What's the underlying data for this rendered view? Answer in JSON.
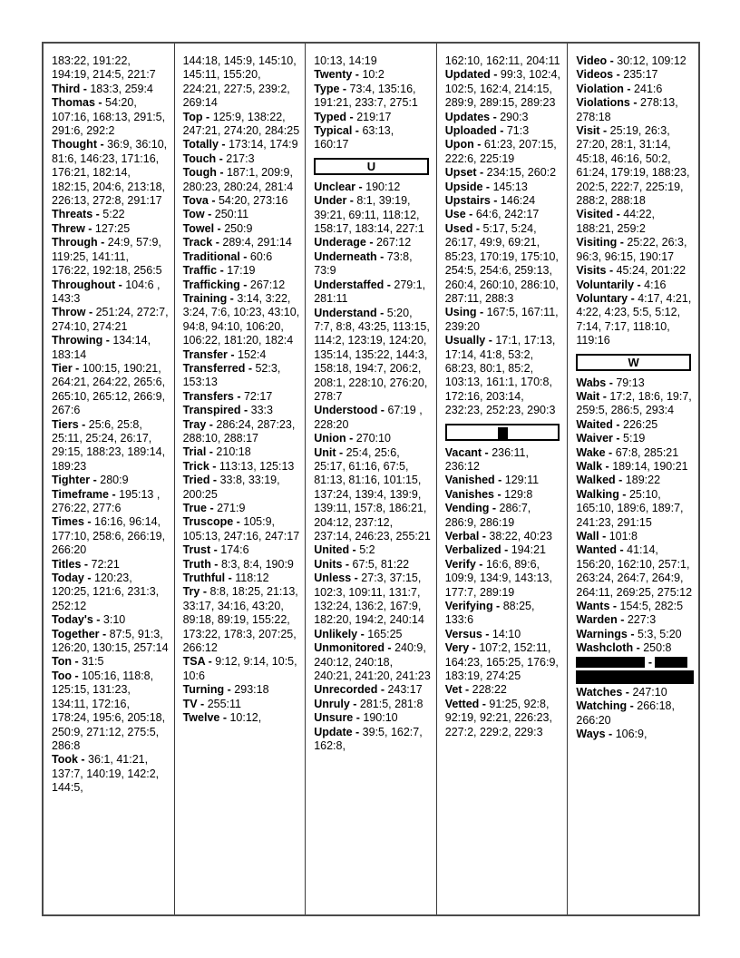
{
  "separator": " - ",
  "colors": {
    "text": "#000000",
    "outer_border": "#4a4a4a",
    "column_rule": "#3a3a3a",
    "section_border": "#000000",
    "redaction": "#000000",
    "background": "#ffffff"
  },
  "sections_visible": [
    "U",
    "W"
  ],
  "columns": [
    {
      "entries": [
        {
          "kind": "continuation",
          "refs": "183:22, 191:22, 194:19, 214:5, 221:7"
        },
        {
          "kind": "word",
          "word": "Third",
          "refs": "183:3, 259:4"
        },
        {
          "kind": "word",
          "word": "Thomas",
          "refs": "54:20, 107:16, 168:13, 291:5, 291:6, 292:2"
        },
        {
          "kind": "word",
          "word": "Thought",
          "refs": "36:9, 36:10, 81:6, 146:23, 171:16, 176:21, 182:14, 182:15, 204:6, 213:18, 226:13, 272:8, 291:17"
        },
        {
          "kind": "word",
          "word": "Threats",
          "refs": "5:22"
        },
        {
          "kind": "word",
          "word": "Threw",
          "refs": "127:25"
        },
        {
          "kind": "word",
          "word": "Through",
          "refs": "24:9, 57:9, 119:25, 141:11, 176:22, 192:18, 256:5"
        },
        {
          "kind": "word",
          "word": "Throughout",
          "refs": "104:6 , 143:3"
        },
        {
          "kind": "word",
          "word": "Throw",
          "refs": "251:24, 272:7, 274:10, 274:21"
        },
        {
          "kind": "word",
          "word": "Throwing",
          "refs": "134:14, 183:14"
        },
        {
          "kind": "word",
          "word": "Tier",
          "refs": "100:15, 190:21, 264:21, 264:22, 265:6, 265:10, 265:12, 266:9, 267:6"
        },
        {
          "kind": "word",
          "word": "Tiers",
          "refs": "25:6, 25:8, 25:11, 25:24, 26:17, 29:15, 188:23, 189:14, 189:23"
        },
        {
          "kind": "word",
          "word": "Tighter",
          "refs": "280:9"
        },
        {
          "kind": "word",
          "word": "Timeframe",
          "refs": "195:13 , 276:22, 277:6"
        },
        {
          "kind": "word",
          "word": "Times",
          "refs": "16:16, 96:14, 177:10, 258:6, 266:19, 266:20"
        },
        {
          "kind": "word",
          "word": "Titles",
          "refs": "72:21"
        },
        {
          "kind": "word",
          "word": "Today",
          "refs": "120:23, 120:25, 121:6, 231:3, 252:12"
        },
        {
          "kind": "word",
          "word": "Today's",
          "refs": "3:10"
        },
        {
          "kind": "word",
          "word": "Together",
          "refs": "87:5, 91:3, 126:20, 130:15, 257:14"
        },
        {
          "kind": "word",
          "word": "Ton",
          "refs": "31:5"
        },
        {
          "kind": "word",
          "word": "Too",
          "refs": "105:16, 118:8, 125:15, 131:23, 134:11, 172:16, 178:24, 195:6, 205:18, 250:9, 271:12, 275:5, 286:8"
        },
        {
          "kind": "word",
          "word": "Took",
          "refs": "36:1, 41:21, 137:7, 140:19, 142:2, 144:5,"
        }
      ]
    },
    {
      "entries": [
        {
          "kind": "continuation",
          "refs": "144:18, 145:9, 145:10, 145:11, 155:20, 224:21, 227:5, 239:2, 269:14"
        },
        {
          "kind": "word",
          "word": "Top",
          "refs": "125:9, 138:22, 247:21, 274:20, 284:25"
        },
        {
          "kind": "word",
          "word": "Totally",
          "refs": "173:14, 174:9"
        },
        {
          "kind": "word",
          "word": "Touch",
          "refs": "217:3"
        },
        {
          "kind": "word",
          "word": "Tough",
          "refs": "187:1, 209:9, 280:23, 280:24, 281:4"
        },
        {
          "kind": "word",
          "word": "Tova",
          "refs": "54:20, 273:16"
        },
        {
          "kind": "word",
          "word": "Tow",
          "refs": "250:11"
        },
        {
          "kind": "word",
          "word": "Towel",
          "refs": "250:9"
        },
        {
          "kind": "word",
          "word": "Track",
          "refs": "289:4, 291:14"
        },
        {
          "kind": "word",
          "word": "Traditional",
          "refs": "60:6"
        },
        {
          "kind": "word",
          "word": "Traffic",
          "refs": "17:19"
        },
        {
          "kind": "word",
          "word": "Trafficking",
          "refs": "267:12"
        },
        {
          "kind": "word",
          "word": "Training",
          "refs": "3:14, 3:22, 3:24, 7:6, 10:23, 43:10, 94:8, 94:10, 106:20, 106:22, 181:20, 182:4"
        },
        {
          "kind": "word",
          "word": "Transfer",
          "refs": "152:4"
        },
        {
          "kind": "word",
          "word": "Transferred",
          "refs": "52:3, 153:13"
        },
        {
          "kind": "word",
          "word": "Transfers",
          "refs": "72:17"
        },
        {
          "kind": "word",
          "word": "Transpired",
          "refs": "33:3"
        },
        {
          "kind": "word",
          "word": "Tray",
          "refs": "286:24, 287:23, 288:10, 288:17"
        },
        {
          "kind": "word",
          "word": "Trial",
          "refs": "210:18"
        },
        {
          "kind": "word",
          "word": "Trick",
          "refs": "113:13, 125:13"
        },
        {
          "kind": "word",
          "word": "Tried",
          "refs": "33:8, 33:19, 200:25"
        },
        {
          "kind": "word",
          "word": "True",
          "refs": "271:9"
        },
        {
          "kind": "word",
          "word": "Truscope",
          "refs": "105:9, 105:13, 247:16, 247:17"
        },
        {
          "kind": "word",
          "word": "Trust",
          "refs": "174:6"
        },
        {
          "kind": "word",
          "word": "Truth",
          "refs": "8:3, 8:4, 190:9"
        },
        {
          "kind": "word",
          "word": "Truthful",
          "refs": "118:12"
        },
        {
          "kind": "word",
          "word": "Try",
          "refs": "8:8, 18:25, 21:13, 33:17, 34:16, 43:20, 89:18, 89:19, 155:22, 173:22, 178:3, 207:25, 266:12"
        },
        {
          "kind": "word",
          "word": "TSA",
          "refs": "9:12, 9:14, 10:5, 10:6"
        },
        {
          "kind": "word",
          "word": "Turning",
          "refs": "293:18"
        },
        {
          "kind": "word",
          "word": "TV",
          "refs": "255:11"
        },
        {
          "kind": "word",
          "word": "Twelve",
          "refs": "10:12,"
        }
      ]
    },
    {
      "entries": [
        {
          "kind": "continuation",
          "refs": "10:13, 14:19"
        },
        {
          "kind": "word",
          "word": "Twenty",
          "refs": "10:2"
        },
        {
          "kind": "word",
          "word": "Type",
          "refs": "73:4, 135:16, 191:21, 233:7, 275:1"
        },
        {
          "kind": "word",
          "word": "Typed",
          "refs": "219:17"
        },
        {
          "kind": "word",
          "word": "Typical",
          "refs": "63:13, 160:17"
        },
        {
          "kind": "section",
          "letter": "U"
        },
        {
          "kind": "word",
          "word": "Unclear",
          "refs": "190:12"
        },
        {
          "kind": "word",
          "word": "Under",
          "refs": "8:1, 39:19, 39:21, 69:11, 118:12, 158:17, 183:14, 227:1"
        },
        {
          "kind": "word",
          "word": "Underage",
          "refs": "267:12"
        },
        {
          "kind": "word",
          "word": "Underneath",
          "refs": "73:8, 73:9"
        },
        {
          "kind": "word",
          "word": "Understaffed",
          "refs": "279:1, 281:11"
        },
        {
          "kind": "word",
          "word": "Understand",
          "refs": "5:20, 7:7, 8:8, 43:25, 113:15, 114:2, 123:19, 124:20, 135:14, 135:22, 144:3, 158:18, 194:7, 206:2, 208:1, 228:10, 276:20, 278:7"
        },
        {
          "kind": "word",
          "word": "Understood",
          "refs": "67:19 , 228:20"
        },
        {
          "kind": "word",
          "word": "Union",
          "refs": "270:10"
        },
        {
          "kind": "word",
          "word": "Unit",
          "refs": "25:4, 25:6, 25:17, 61:16, 67:5, 81:13, 81:16, 101:15, 137:24, 139:4, 139:9, 139:11, 157:8, 186:21, 204:12, 237:12, 237:14, 246:23, 255:21"
        },
        {
          "kind": "word",
          "word": "United",
          "refs": "5:2"
        },
        {
          "kind": "word",
          "word": "Units",
          "refs": "67:5, 81:22"
        },
        {
          "kind": "word",
          "word": "Unless",
          "refs": "27:3, 37:15, 102:3, 109:11, 131:7, 132:24, 136:2, 167:9, 182:20, 194:2, 240:14"
        },
        {
          "kind": "word",
          "word": "Unlikely",
          "refs": "165:25"
        },
        {
          "kind": "word",
          "word": "Unmonitored",
          "refs": "240:9, 240:12, 240:18, 240:21, 241:20, 241:23"
        },
        {
          "kind": "word",
          "word": "Unrecorded",
          "refs": "243:17"
        },
        {
          "kind": "word",
          "word": "Unruly",
          "refs": "281:5, 281:8"
        },
        {
          "kind": "word",
          "word": "Unsure",
          "refs": "190:10"
        },
        {
          "kind": "word",
          "word": "Update",
          "refs": "39:5, 162:7, 162:8,"
        }
      ]
    },
    {
      "entries": [
        {
          "kind": "continuation",
          "refs": "162:10, 162:11, 204:11"
        },
        {
          "kind": "word",
          "word": "Updated",
          "refs": "99:3, 102:4, 102:5, 162:4, 214:15, 289:9, 289:15, 289:23"
        },
        {
          "kind": "word",
          "word": "Updates",
          "refs": "290:3"
        },
        {
          "kind": "word",
          "word": "Uploaded",
          "refs": "71:3"
        },
        {
          "kind": "word",
          "word": "Upon",
          "refs": "61:23, 207:15, 222:6, 225:19"
        },
        {
          "kind": "word",
          "word": "Upset",
          "refs": "234:15, 260:2"
        },
        {
          "kind": "word",
          "word": "Upside",
          "refs": "145:13"
        },
        {
          "kind": "word",
          "word": "Upstairs",
          "refs": "146:24"
        },
        {
          "kind": "word",
          "word": "Use",
          "refs": "64:6, 242:17"
        },
        {
          "kind": "word",
          "word": "Used",
          "refs": "5:17, 5:24, 26:17, 49:9, 69:21, 85:23, 170:19, 175:10, 254:5, 254:6, 259:13, 260:4, 260:10, 286:10, 287:11, 288:3"
        },
        {
          "kind": "word",
          "word": "Using",
          "refs": "167:5, 167:11, 239:20"
        },
        {
          "kind": "word",
          "word": "Usually",
          "refs": "17:1, 17:13, 17:14, 41:8, 53:2, 68:23, 80:1, 85:2, 103:13, 161:1, 170:8, 172:16, 203:14, 232:23, 252:23, 290:3"
        },
        {
          "kind": "section-redacted",
          "letter": ""
        },
        {
          "kind": "word",
          "word": "Vacant",
          "refs": "236:11, 236:12"
        },
        {
          "kind": "word",
          "word": "Vanished",
          "refs": "129:11"
        },
        {
          "kind": "word",
          "word": "Vanishes",
          "refs": "129:8"
        },
        {
          "kind": "word",
          "word": "Vending",
          "refs": "286:7, 286:9, 286:19"
        },
        {
          "kind": "word",
          "word": "Verbal",
          "refs": "38:22, 40:23"
        },
        {
          "kind": "word",
          "word": "Verbalized",
          "refs": "194:21"
        },
        {
          "kind": "word",
          "word": "Verify",
          "refs": "16:6, 89:6, 109:9, 134:9, 143:13, 177:7, 289:19"
        },
        {
          "kind": "word",
          "word": "Verifying",
          "refs": "88:25, 133:6"
        },
        {
          "kind": "word",
          "word": "Versus",
          "refs": "14:10"
        },
        {
          "kind": "word",
          "word": "Very",
          "refs": "107:2, 152:11, 164:23, 165:25, 176:9, 183:19, 274:25"
        },
        {
          "kind": "word",
          "word": "Vet",
          "refs": "228:22"
        },
        {
          "kind": "word",
          "word": "Vetted",
          "refs": "91:25, 92:8, 92:19, 92:21, 226:23, 227:2, 229:2, 229:3"
        }
      ]
    },
    {
      "entries": [
        {
          "kind": "word",
          "word": "Video",
          "refs": "30:12, 109:12"
        },
        {
          "kind": "word",
          "word": "Videos",
          "refs": "235:17"
        },
        {
          "kind": "word",
          "word": "Violation",
          "refs": "241:6"
        },
        {
          "kind": "word",
          "word": "Violations",
          "refs": "278:13, 278:18"
        },
        {
          "kind": "word",
          "word": "Visit",
          "refs": "25:19, 26:3, 27:20, 28:1, 31:14, 45:18, 46:16, 50:2, 61:24, 179:19, 188:23, 202:5, 222:7, 225:19, 288:2, 288:18"
        },
        {
          "kind": "word",
          "word": "Visited",
          "refs": "44:22, 188:21, 259:2"
        },
        {
          "kind": "word",
          "word": "Visiting",
          "refs": "25:22, 26:3, 96:3, 96:15, 190:17"
        },
        {
          "kind": "word",
          "word": "Visits",
          "refs": "45:24, 201:22"
        },
        {
          "kind": "word",
          "word": "Voluntarily",
          "refs": "4:16"
        },
        {
          "kind": "word",
          "word": "Voluntary",
          "refs": "4:17, 4:21, 4:22, 4:23, 5:5, 5:12, 7:14, 7:17, 118:10, 119:16"
        },
        {
          "kind": "section",
          "letter": "W"
        },
        {
          "kind": "word",
          "word": "Wabs",
          "refs": "79:13"
        },
        {
          "kind": "word",
          "word": "Wait",
          "refs": "17:2, 18:6, 19:7, 259:5, 286:5, 293:4"
        },
        {
          "kind": "word",
          "word": "Waited",
          "refs": "226:25"
        },
        {
          "kind": "word",
          "word": "Waiver",
          "refs": "5:19"
        },
        {
          "kind": "word",
          "word": "Wake",
          "refs": "67:8, 285:21"
        },
        {
          "kind": "word",
          "word": "Walk",
          "refs": "189:14, 190:21"
        },
        {
          "kind": "word",
          "word": "Walked",
          "refs": "189:22"
        },
        {
          "kind": "word",
          "word": "Walking",
          "refs": "25:10, 165:10, 189:6, 189:7, 241:23, 291:15"
        },
        {
          "kind": "word",
          "word": "Wall",
          "refs": "101:8"
        },
        {
          "kind": "word",
          "word": "Wanted",
          "refs": "41:14, 156:20, 162:10, 257:1, 263:24, 264:7, 264:9, 264:11, 269:25, 275:12"
        },
        {
          "kind": "word",
          "word": "Wants",
          "refs": "154:5, 282:5"
        },
        {
          "kind": "word",
          "word": "Warden",
          "refs": "227:3"
        },
        {
          "kind": "word",
          "word": "Warnings",
          "refs": "5:3, 5:20"
        },
        {
          "kind": "word",
          "word": "Washcloth",
          "refs": "250:8"
        },
        {
          "kind": "redacted"
        },
        {
          "kind": "word",
          "word": "Watches",
          "refs": "247:10"
        },
        {
          "kind": "word",
          "word": "Watching",
          "refs": "266:18, 266:20"
        },
        {
          "kind": "word",
          "word": "Ways",
          "refs": "106:9,"
        }
      ]
    }
  ]
}
